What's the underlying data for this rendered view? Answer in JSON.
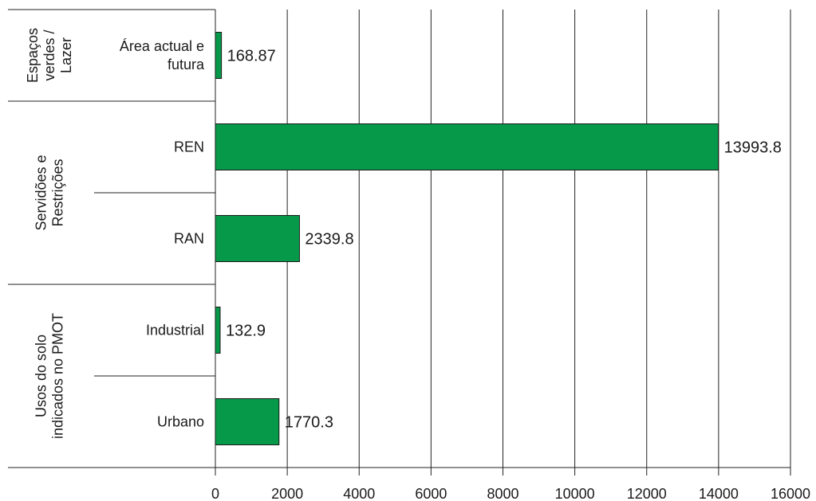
{
  "chart_data": {
    "type": "bar",
    "orientation": "horizontal",
    "title": "",
    "xlabel": "",
    "ylabel": "",
    "xlim": [
      0,
      16000
    ],
    "x_ticks": [
      0,
      2000,
      4000,
      6000,
      8000,
      10000,
      12000,
      14000,
      16000
    ],
    "grid": true,
    "bar_color": "#07994a",
    "groups": [
      {
        "label": "Espaços verdes / Lazer",
        "lines": [
          "Espaços",
          "verdes /",
          "Lazer"
        ]
      },
      {
        "label": "Servidões e Restrições",
        "lines": [
          "Servidões e",
          "Restrições"
        ]
      },
      {
        "label": "Usos do solo indicados no PMOT",
        "lines": [
          "Usos do solo",
          "indicados no PMOT"
        ]
      }
    ],
    "categories": [
      {
        "group": "Espaços verdes / Lazer",
        "label": "Área actual e futura",
        "lines": [
          "Área actual e",
          "futura"
        ],
        "value": 168.87,
        "value_label": "168.87"
      },
      {
        "group": "Servidões e Restrições",
        "label": "REN",
        "lines": [
          "REN"
        ],
        "value": 13993.8,
        "value_label": "13993.8"
      },
      {
        "group": "Servidões e Restrições",
        "label": "RAN",
        "lines": [
          "RAN"
        ],
        "value": 2339.8,
        "value_label": "2339.8"
      },
      {
        "group": "Usos do solo indicados no PMOT",
        "label": "Industrial",
        "lines": [
          "Industrial"
        ],
        "value": 132.9,
        "value_label": "132.9"
      },
      {
        "group": "Usos do solo indicados no PMOT",
        "label": "Urbano",
        "lines": [
          "Urbano"
        ],
        "value": 1770.3,
        "value_label": "1770.3"
      }
    ]
  }
}
